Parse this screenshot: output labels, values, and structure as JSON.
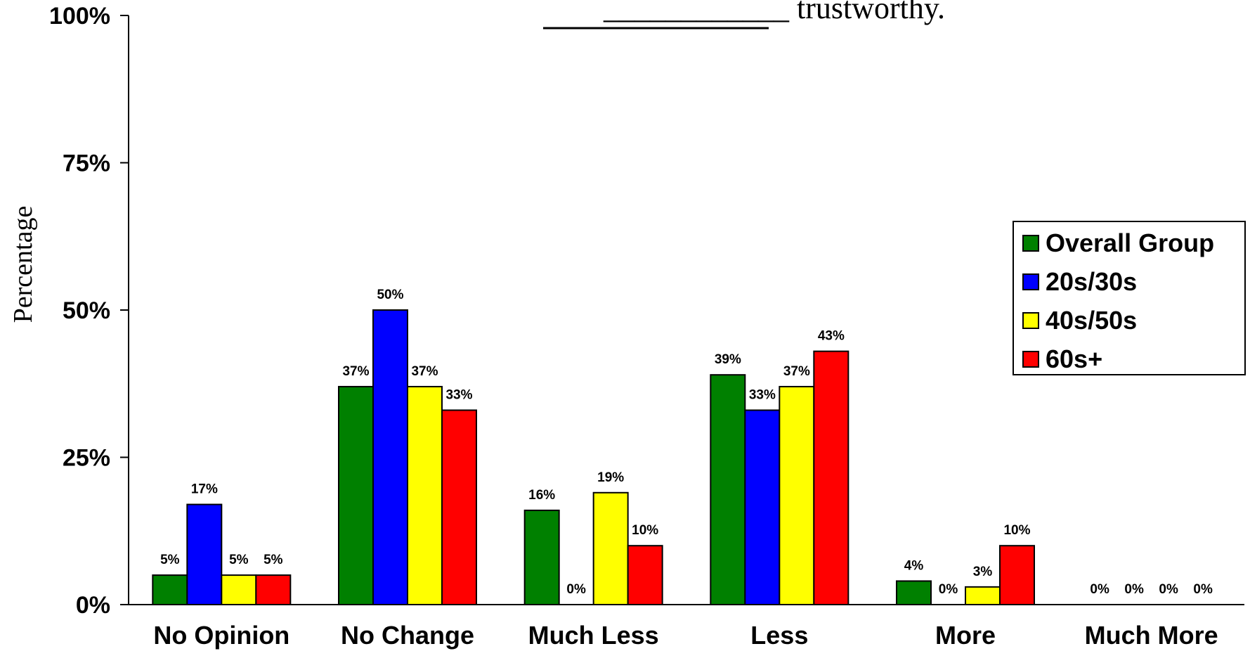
{
  "chart_data": {
    "type": "bar",
    "title": "____________ trustworthy.",
    "xlabel": "",
    "ylabel": "Percentage",
    "ylim": [
      0,
      100
    ],
    "yticks": [
      "0%",
      "25%",
      "50%",
      "75%",
      "100%"
    ],
    "ytick_values": [
      0,
      25,
      50,
      75,
      100
    ],
    "grid": false,
    "legend_position": "right",
    "categories": [
      "No Opinion",
      "No Change",
      "Much Less",
      "Less",
      "More",
      "Much More"
    ],
    "series": [
      {
        "name": "Overall Group",
        "color": "#008000",
        "values": [
          5,
          37,
          16,
          39,
          4,
          0
        ],
        "labels": [
          "5%",
          "37%",
          "16%",
          "39%",
          "4%",
          "0%"
        ]
      },
      {
        "name": "20s/30s",
        "color": "#0000ff",
        "values": [
          17,
          50,
          0,
          33,
          0,
          0
        ],
        "labels": [
          "17%",
          "50%",
          "0%",
          "33%",
          "0%",
          "0%"
        ]
      },
      {
        "name": "40s/50s",
        "color": "#ffff00",
        "values": [
          5,
          37,
          19,
          37,
          3,
          0
        ],
        "labels": [
          "5%",
          "37%",
          "19%",
          "37%",
          "3%",
          "0%"
        ]
      },
      {
        "name": "60s+",
        "color": "#ff0000",
        "values": [
          5,
          33,
          10,
          43,
          10,
          0
        ],
        "labels": [
          "5%",
          "33%",
          "10%",
          "43%",
          "10%",
          "0%"
        ]
      }
    ]
  }
}
